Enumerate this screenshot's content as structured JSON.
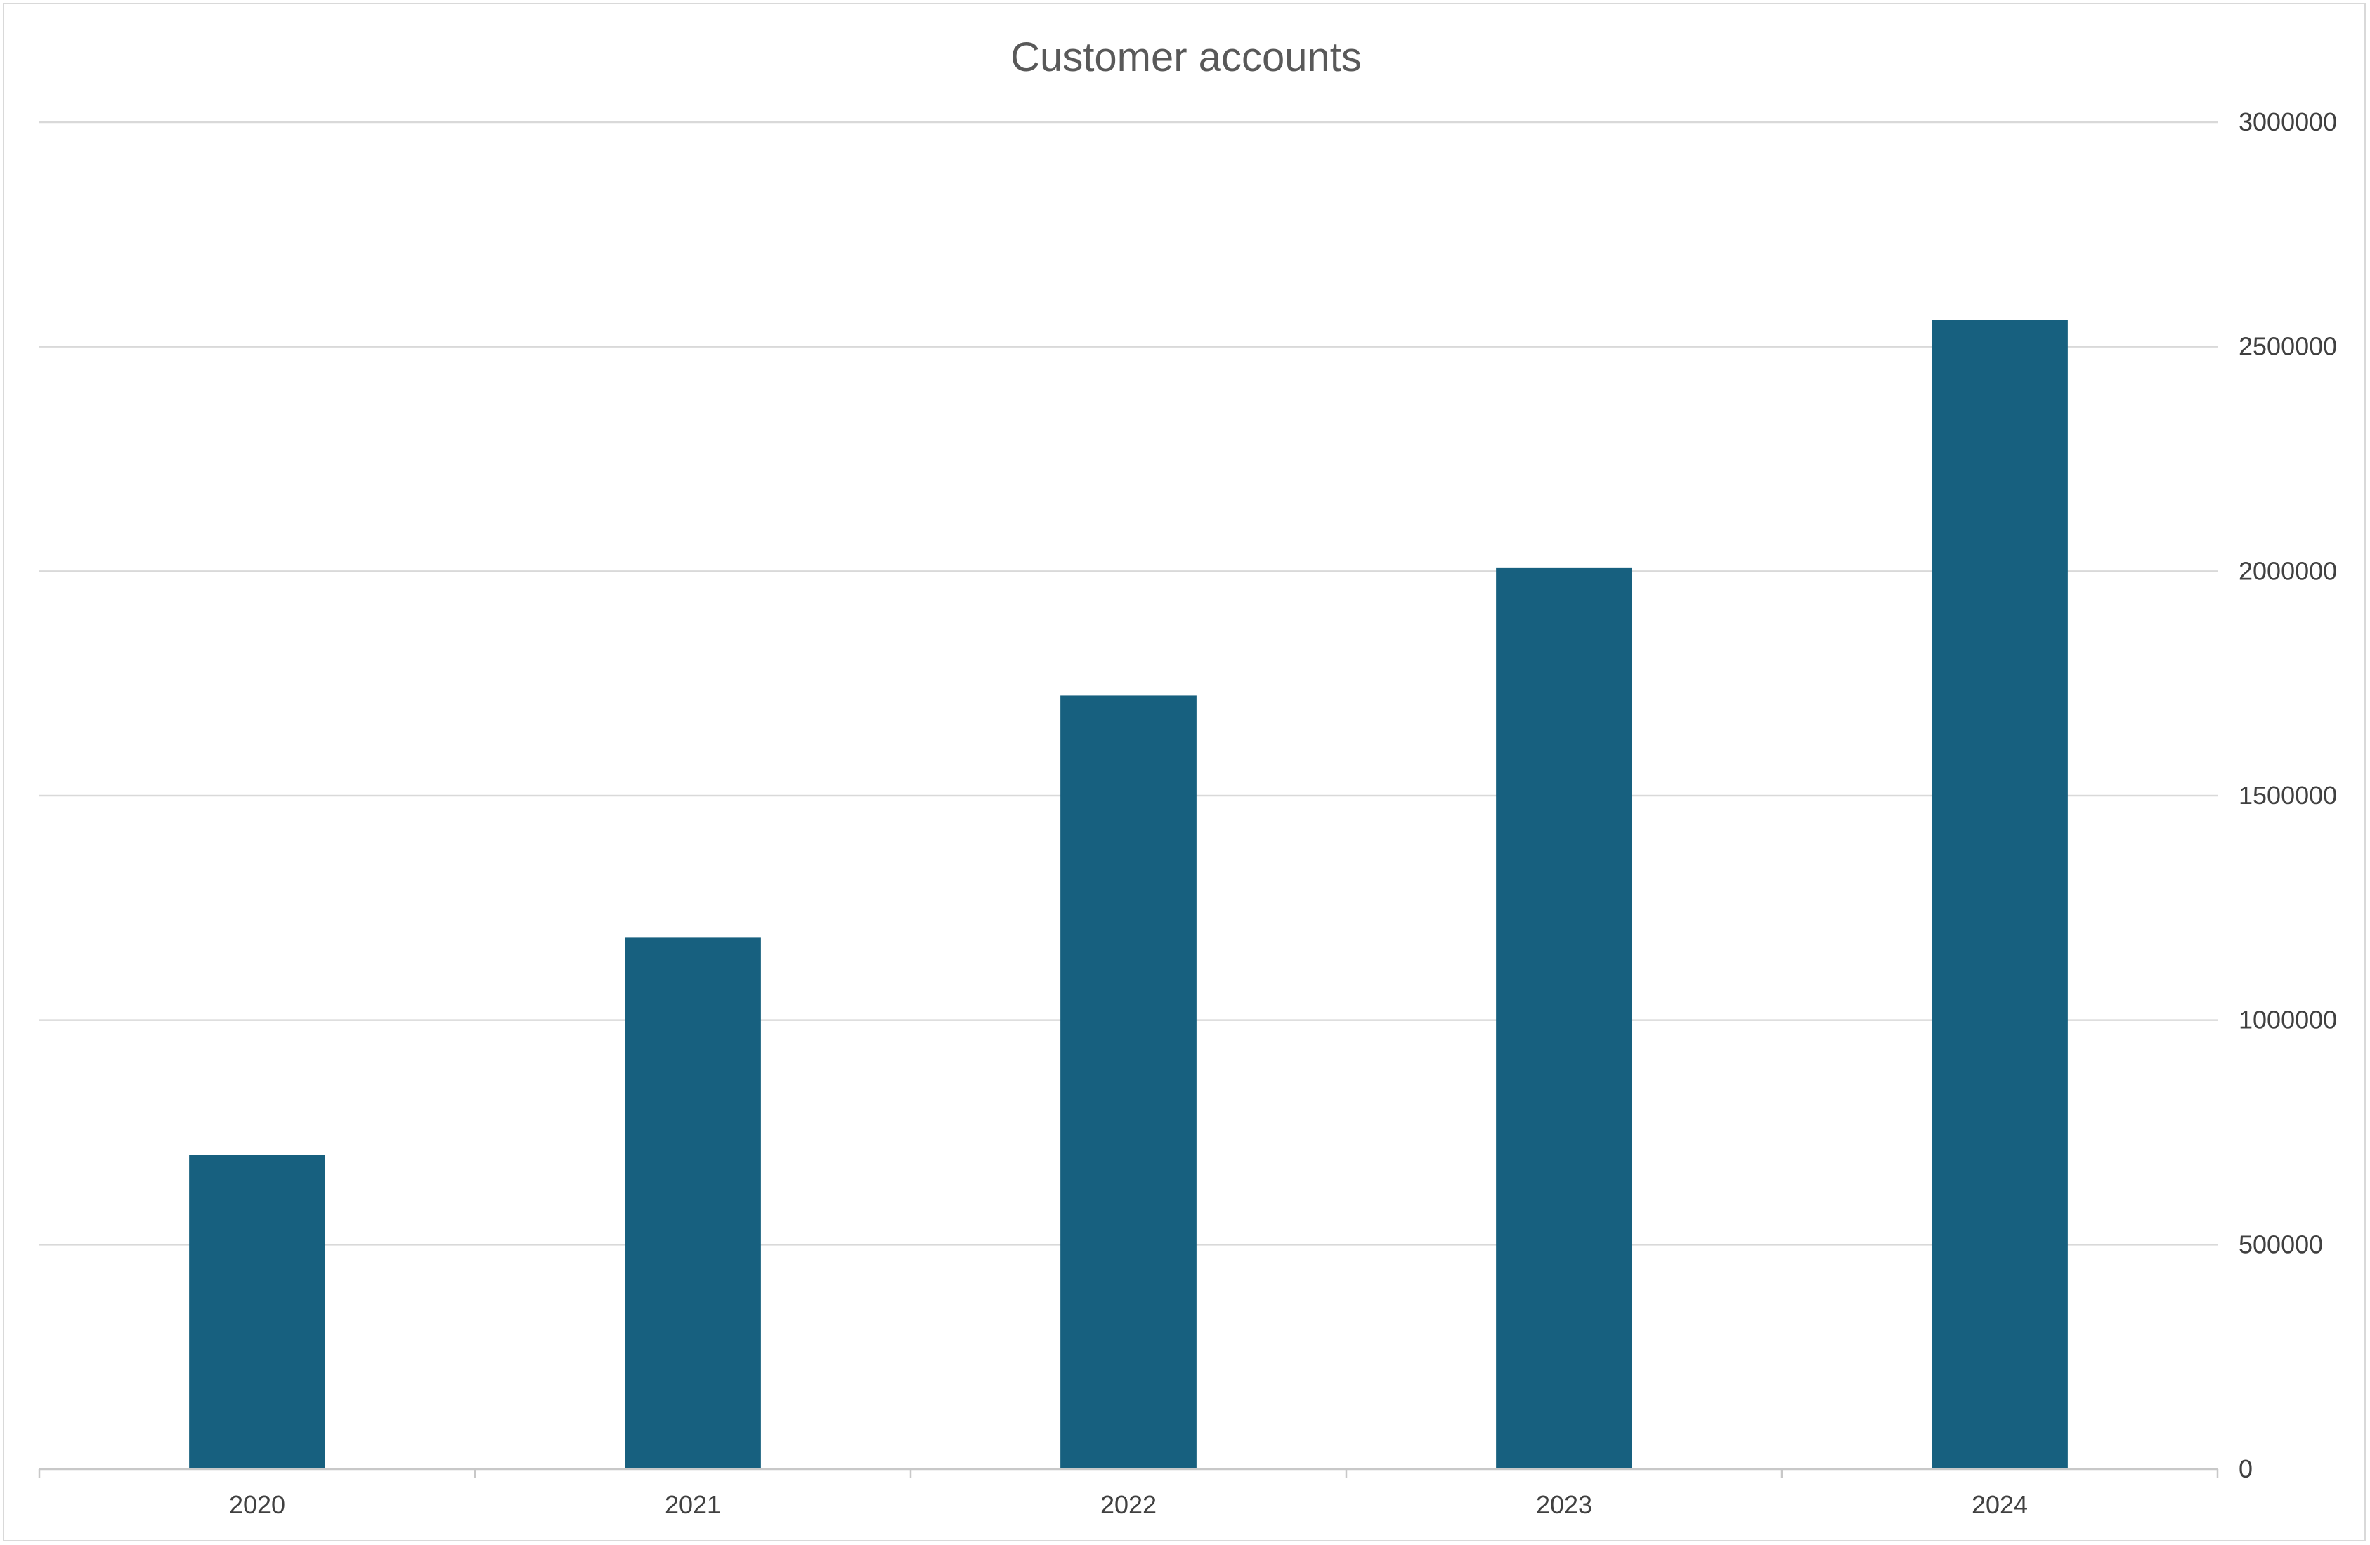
{
  "chart_data": {
    "type": "bar",
    "title": "Customer accounts",
    "xlabel": "",
    "ylabel": "",
    "categories": [
      "2020",
      "2021",
      "2022",
      "2023",
      "2024"
    ],
    "values": [
      700000,
      1185000,
      1723000,
      2007000,
      2559000
    ],
    "ylim": [
      0,
      3000000
    ],
    "yticks": [
      0,
      500000,
      1000000,
      1500000,
      2000000,
      2500000,
      3000000
    ],
    "ytick_labels": [
      "0",
      "500000",
      "1000000",
      "1500000",
      "2000000",
      "2500000",
      "3000000"
    ],
    "y_axis_side": "right",
    "grid": true,
    "legend": "none",
    "bar_color": "#17607f"
  }
}
